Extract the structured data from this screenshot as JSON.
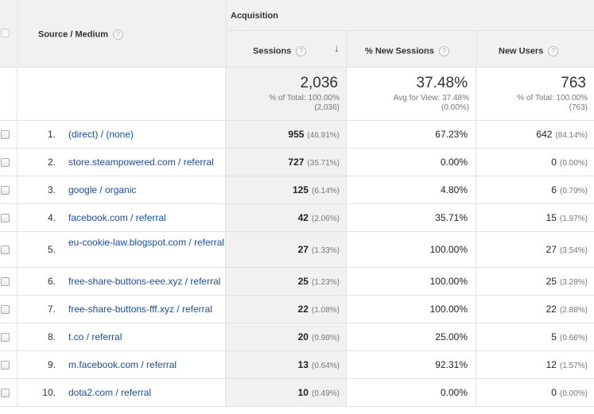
{
  "header": {
    "group_label": "Acquisition",
    "source_medium_label": "Source / Medium",
    "columns": {
      "sessions": "Sessions",
      "new_sessions": "% New Sessions",
      "new_users": "New Users"
    },
    "help_glyph": "?",
    "sort_glyph": "↓"
  },
  "totals": {
    "sessions": {
      "value": "2,036",
      "line1": "% of Total: 100.00%",
      "line2": "(2,036)"
    },
    "new_sessions": {
      "value": "37.48%",
      "line1": "Avg for View: 37.48%",
      "line2": "(0.00%)"
    },
    "new_users": {
      "value": "763",
      "line1": "% of Total: 100.00%",
      "line2": "(763)"
    }
  },
  "rows": [
    {
      "idx": "1.",
      "source": "(direct) / (none)",
      "sessions": "955",
      "sessions_pct": "(46.91%)",
      "new_sessions": "67.23%",
      "new_users": "642",
      "new_users_pct": "(84.14%)"
    },
    {
      "idx": "2.",
      "source": "store.steampowered.com / referral",
      "sessions": "727",
      "sessions_pct": "(35.71%)",
      "new_sessions": "0.00%",
      "new_users": "0",
      "new_users_pct": "(0.00%)"
    },
    {
      "idx": "3.",
      "source": "google / organic",
      "sessions": "125",
      "sessions_pct": "(6.14%)",
      "new_sessions": "4.80%",
      "new_users": "6",
      "new_users_pct": "(0.79%)"
    },
    {
      "idx": "4.",
      "source": "facebook.com / referral",
      "sessions": "42",
      "sessions_pct": "(2.06%)",
      "new_sessions": "35.71%",
      "new_users": "15",
      "new_users_pct": "(1.97%)"
    },
    {
      "idx": "5.",
      "source": "eu-cookie-law.blogspot.com / referral",
      "sessions": "27",
      "sessions_pct": "(1.33%)",
      "new_sessions": "100.00%",
      "new_users": "27",
      "new_users_pct": "(3.54%)"
    },
    {
      "idx": "6.",
      "source": "free-share-buttons-eee.xyz / referral",
      "sessions": "25",
      "sessions_pct": "(1.23%)",
      "new_sessions": "100.00%",
      "new_users": "25",
      "new_users_pct": "(3.28%)"
    },
    {
      "idx": "7.",
      "source": "free-share-buttons-fff.xyz / referral",
      "sessions": "22",
      "sessions_pct": "(1.08%)",
      "new_sessions": "100.00%",
      "new_users": "22",
      "new_users_pct": "(2.88%)"
    },
    {
      "idx": "8.",
      "source": "t.co / referral",
      "sessions": "20",
      "sessions_pct": "(0.98%)",
      "new_sessions": "25.00%",
      "new_users": "5",
      "new_users_pct": "(0.66%)"
    },
    {
      "idx": "9.",
      "source": "m.facebook.com / referral",
      "sessions": "13",
      "sessions_pct": "(0.64%)",
      "new_sessions": "92.31%",
      "new_users": "12",
      "new_users_pct": "(1.57%)"
    },
    {
      "idx": "10.",
      "source": "dota2.com / referral",
      "sessions": "10",
      "sessions_pct": "(0.49%)",
      "new_sessions": "0.00%",
      "new_users": "0",
      "new_users_pct": "(0.00%)"
    }
  ]
}
